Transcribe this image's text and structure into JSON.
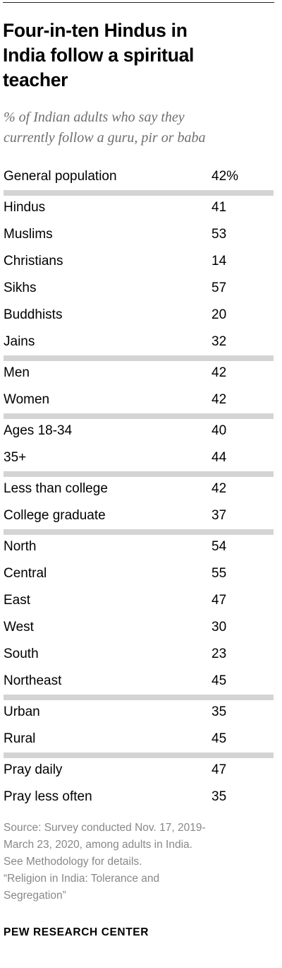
{
  "title_lines": [
    "Four-in-ten Hindus in",
    "India follow a spiritual",
    "teacher"
  ],
  "subtitle_lines": [
    "% of Indian adults who say they",
    "currently follow a guru, pir or baba"
  ],
  "chart_data": {
    "type": "table",
    "unit": "%",
    "groups": [
      {
        "rows": [
          {
            "label": "General population",
            "value": 42,
            "display": "42%"
          }
        ]
      },
      {
        "rows": [
          {
            "label": "Hindus",
            "value": 41,
            "display": "41"
          },
          {
            "label": "Muslims",
            "value": 53,
            "display": "53"
          },
          {
            "label": "Christians",
            "value": 14,
            "display": "14"
          },
          {
            "label": "Sikhs",
            "value": 57,
            "display": "57"
          },
          {
            "label": "Buddhists",
            "value": 20,
            "display": "20"
          },
          {
            "label": "Jains",
            "value": 32,
            "display": "32"
          }
        ]
      },
      {
        "rows": [
          {
            "label": "Men",
            "value": 42,
            "display": "42"
          },
          {
            "label": "Women",
            "value": 42,
            "display": "42"
          }
        ]
      },
      {
        "rows": [
          {
            "label": "Ages 18-34",
            "value": 40,
            "display": "40"
          },
          {
            "label": "35+",
            "value": 44,
            "display": "44"
          }
        ]
      },
      {
        "rows": [
          {
            "label": "Less than college",
            "value": 42,
            "display": "42"
          },
          {
            "label": "College graduate",
            "value": 37,
            "display": "37"
          }
        ]
      },
      {
        "rows": [
          {
            "label": "North",
            "value": 54,
            "display": "54"
          },
          {
            "label": "Central",
            "value": 55,
            "display": "55"
          },
          {
            "label": "East",
            "value": 47,
            "display": "47"
          },
          {
            "label": "West",
            "value": 30,
            "display": "30"
          },
          {
            "label": "South",
            "value": 23,
            "display": "23"
          },
          {
            "label": "Northeast",
            "value": 45,
            "display": "45"
          }
        ]
      },
      {
        "rows": [
          {
            "label": "Urban",
            "value": 35,
            "display": "35"
          },
          {
            "label": "Rural",
            "value": 45,
            "display": "45"
          }
        ]
      },
      {
        "rows": [
          {
            "label": "Pray daily",
            "value": 47,
            "display": "47"
          },
          {
            "label": "Pray less often",
            "value": 35,
            "display": "35"
          }
        ]
      }
    ]
  },
  "source_lines": [
    "Source: Survey conducted Nov. 17, 2019-",
    "March 23, 2020, among adults in India.",
    "See Methodology for details.",
    "“Religion in India: Tolerance and",
    "Segregation”"
  ],
  "brand": "PEW RESEARCH CENTER",
  "colors": {
    "title": "#000000",
    "subtitle": "#6e6e6e",
    "separator": "#d4d4d4",
    "source": "#888888"
  }
}
